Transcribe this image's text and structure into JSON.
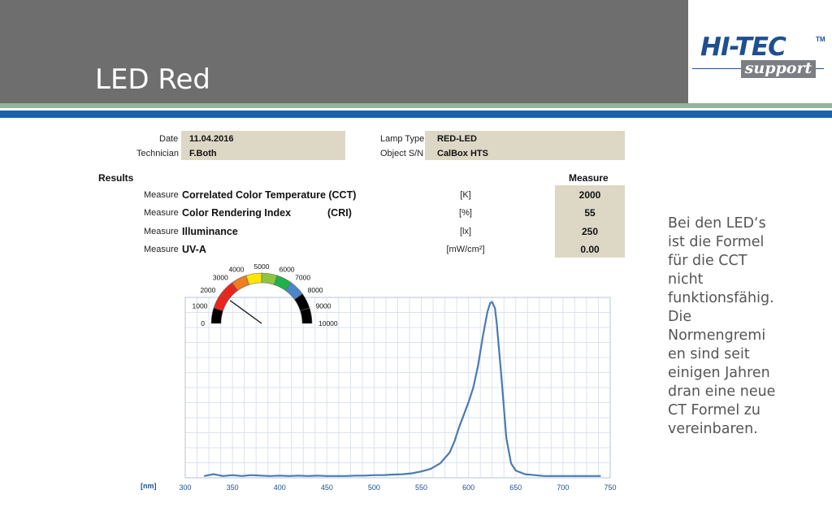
{
  "slide": {
    "title": "LED Red",
    "logo": {
      "main": "HI-TEC",
      "tm": "TM",
      "sub": "support"
    },
    "note": "Bei den LED‘s ist die Formel für die CCT nicht funktionsfähig. Die Normengremi en sind seit einigen Jahren dran eine neue CT Formel zu vereinbaren."
  },
  "info": {
    "date_label": "Date",
    "date_value": "11.04.2016",
    "technician_label": "Technician",
    "technician_value": "F.Both",
    "lamp_type_label": "Lamp Type",
    "lamp_type_value": "RED-LED",
    "object_sn_label": "Object S/N",
    "object_sn_value": "CalBox HTS"
  },
  "results": {
    "heading": "Results",
    "measure_heading": "Measure",
    "rows": [
      {
        "label": "Measure",
        "name": "Correlated Color Temperature (CCT)",
        "abbr": "",
        "unit": "[K]",
        "value": "2000"
      },
      {
        "label": "Measure",
        "name": "Color Rendering Index",
        "abbr": "(CRI)",
        "unit": "[%]",
        "value": "55"
      },
      {
        "label": "Measure",
        "name": "Illuminance",
        "abbr": "",
        "unit": "[lx]",
        "value": "250"
      },
      {
        "label": "Measure",
        "name": "UV-A",
        "abbr": "",
        "unit": "[mW/cm²]",
        "value": "0.00"
      }
    ]
  },
  "gauge": {
    "ticks": [
      "0",
      "1000",
      "2000",
      "3000",
      "4000",
      "5000",
      "6000",
      "7000",
      "8000",
      "9000",
      "10000"
    ],
    "min": 0,
    "max": 10000,
    "value": 2000,
    "segment_colors": [
      "#000000",
      "#e8261f",
      "#e8261f",
      "#ef7d22",
      "#ffe600",
      "#8dc63f",
      "#1fb24a",
      "#4a86c8",
      "#000000",
      "#000000"
    ]
  },
  "chart_data": {
    "type": "line",
    "title": "",
    "xlabel": "[nm]",
    "ylabel": "",
    "xlim": [
      300,
      750
    ],
    "xticks": [
      300,
      350,
      400,
      450,
      500,
      550,
      600,
      650,
      700,
      750
    ],
    "ylim": [
      0,
      1
    ],
    "grid": true,
    "line_color": "#4a7ab5",
    "series": [
      {
        "x": [
          320,
          330,
          340,
          350,
          360,
          370,
          380,
          390,
          400,
          410,
          420,
          430,
          440,
          450,
          460,
          470,
          480,
          490,
          500,
          510,
          520,
          530,
          540,
          550,
          560,
          570,
          580,
          585,
          590,
          595,
          600,
          605,
          610,
          615,
          620,
          623,
          625,
          628,
          630,
          635,
          640,
          645,
          650,
          660,
          670,
          680,
          690,
          700,
          710,
          720,
          730,
          740
        ],
        "y": [
          0.01,
          0.02,
          0.01,
          0.015,
          0.01,
          0.015,
          0.012,
          0.01,
          0.012,
          0.01,
          0.012,
          0.01,
          0.012,
          0.01,
          0.01,
          0.01,
          0.012,
          0.012,
          0.015,
          0.015,
          0.018,
          0.02,
          0.025,
          0.035,
          0.05,
          0.08,
          0.14,
          0.2,
          0.28,
          0.35,
          0.42,
          0.5,
          0.62,
          0.78,
          0.92,
          0.97,
          0.975,
          0.94,
          0.85,
          0.55,
          0.22,
          0.08,
          0.04,
          0.02,
          0.015,
          0.01,
          0.01,
          0.01,
          0.01,
          0.01,
          0.01,
          0.01
        ]
      }
    ]
  }
}
